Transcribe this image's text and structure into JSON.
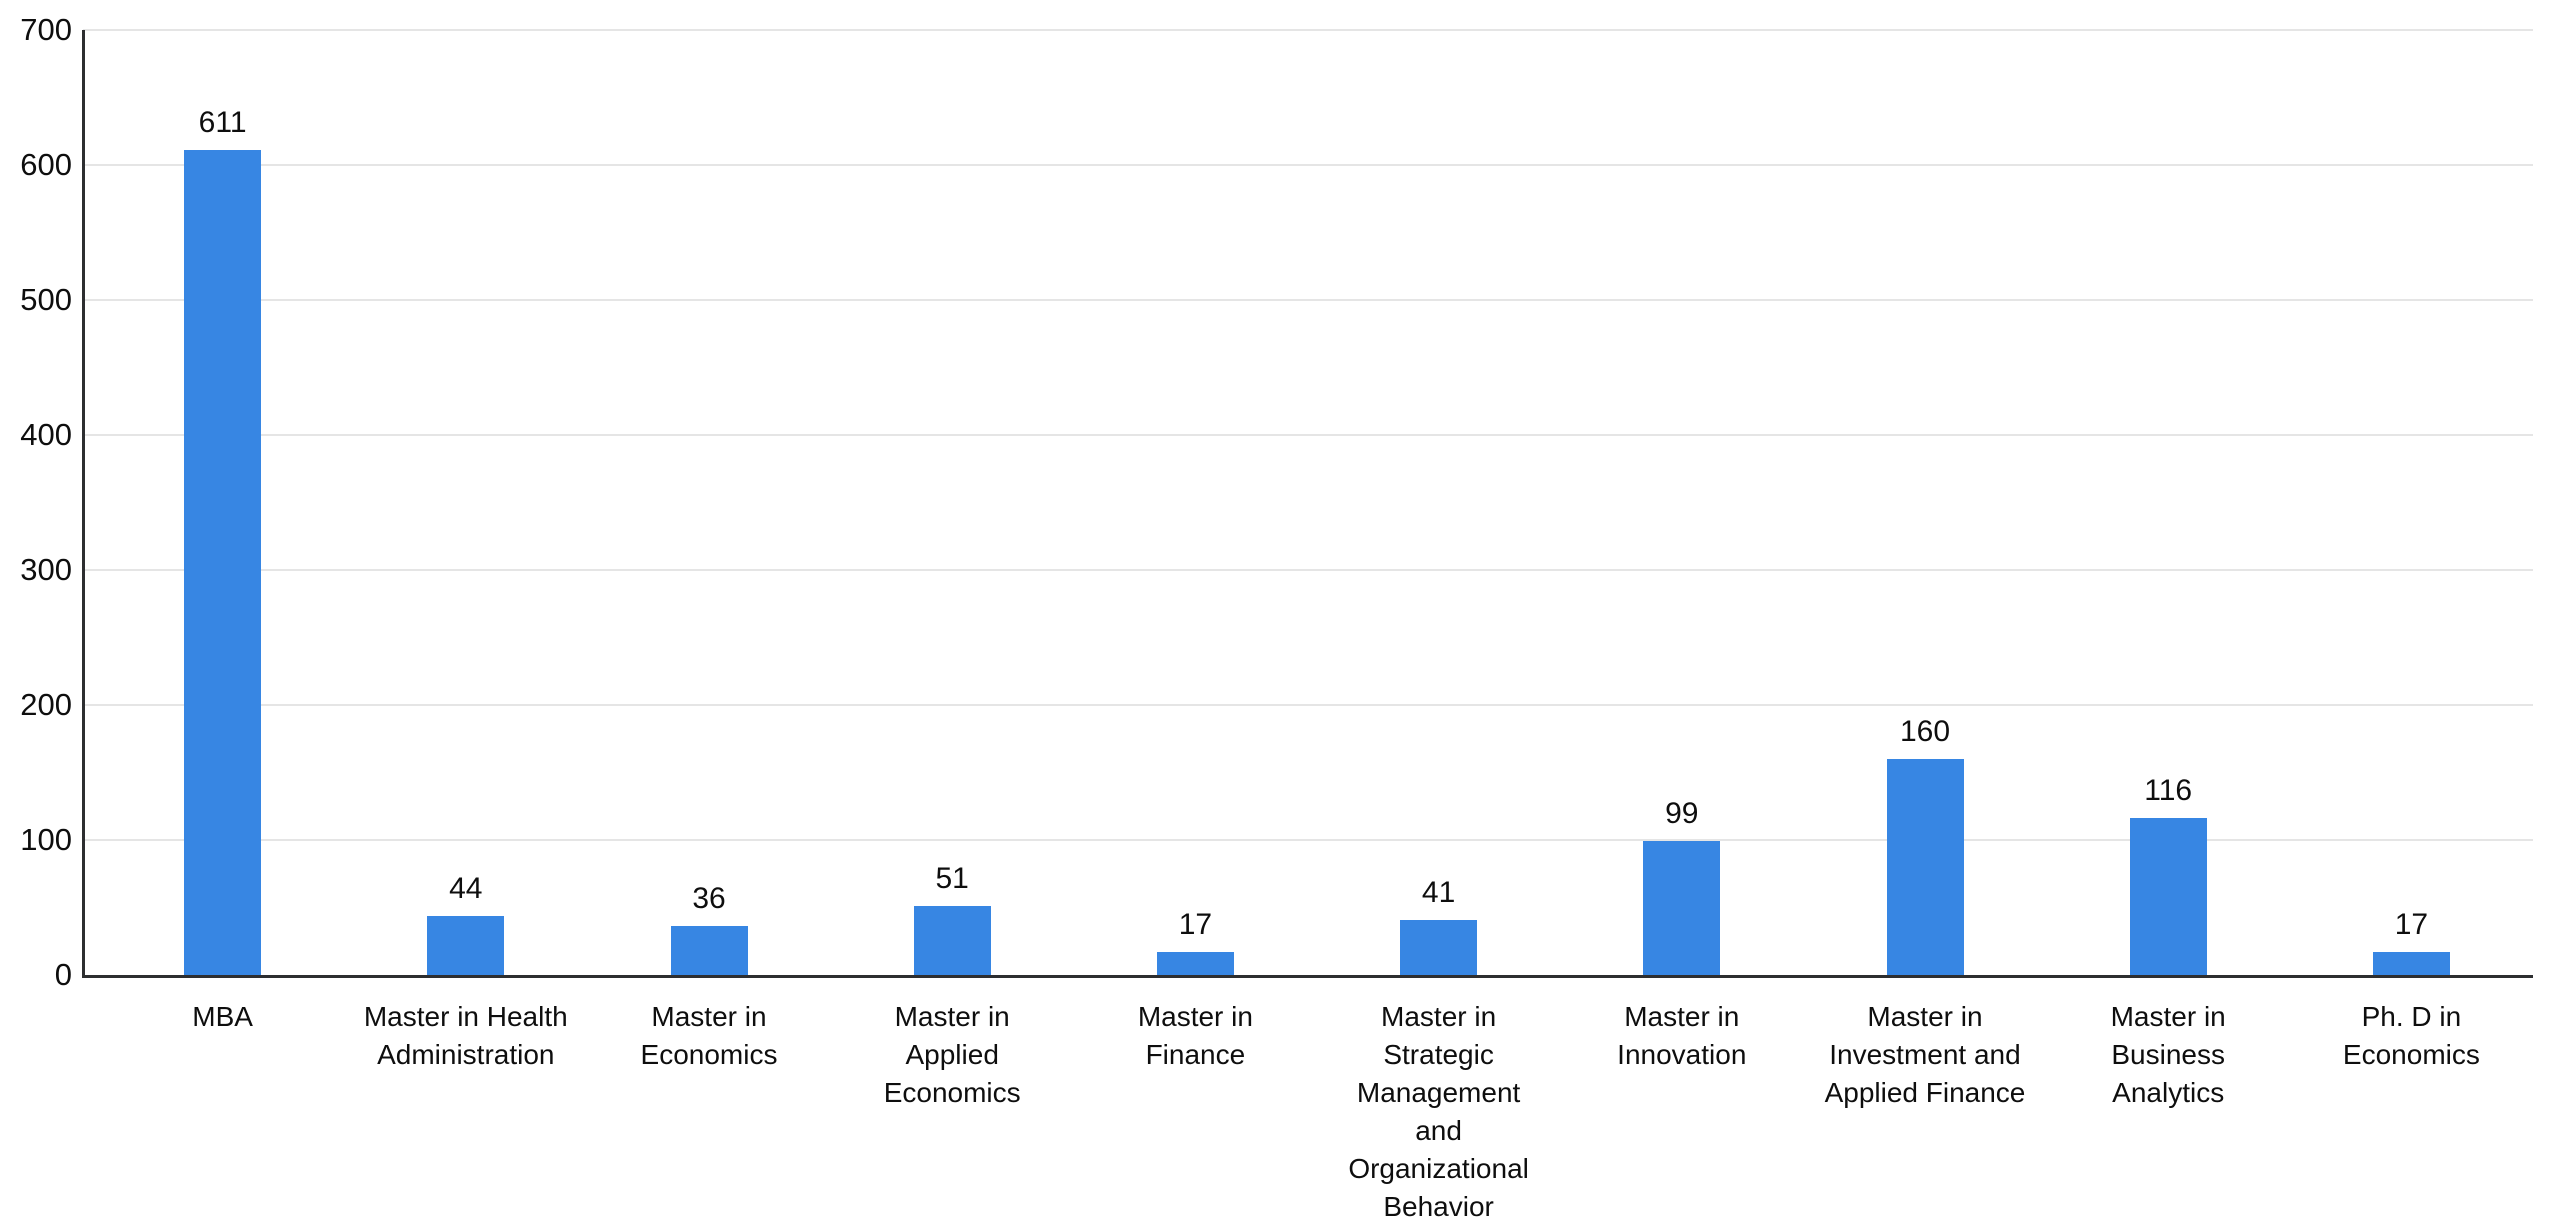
{
  "chart_data": {
    "type": "bar",
    "title": "",
    "xlabel": "",
    "ylabel": "",
    "categories": [
      "MBA",
      "Master in Health Administration",
      "Master in Economics",
      "Master in Applied Economics",
      "Master in Finance",
      "Master in Strategic Management and Organizational Behavior",
      "Master in Innovation",
      "Master in Investment and Applied Finance",
      "Master in Business Analytics",
      "Ph. D in Economics"
    ],
    "category_display_lines": [
      [
        "MBA"
      ],
      [
        "Master in Health",
        "Administration"
      ],
      [
        "Master in",
        "Economics"
      ],
      [
        "Master in",
        "Applied",
        "Economics"
      ],
      [
        "Master in",
        "Finance"
      ],
      [
        "Master in",
        "Strategic",
        "Management",
        "and",
        "Organizational",
        "Behavior"
      ],
      [
        "Master in",
        "Innovation"
      ],
      [
        "Master in",
        "Investment and",
        "Applied Finance"
      ],
      [
        "Master in",
        "Business",
        "Analytics"
      ],
      [
        "Ph. D in",
        "Economics"
      ]
    ],
    "values": [
      611,
      44,
      36,
      51,
      17,
      41,
      99,
      160,
      116,
      17
    ],
    "value_labels": [
      "611",
      "44",
      "36",
      "51",
      "17",
      "41",
      "99",
      "160",
      "116",
      "17"
    ],
    "ylim": [
      0,
      700
    ],
    "yticks": [
      0,
      100,
      200,
      300,
      400,
      500,
      600,
      700
    ],
    "grid": true,
    "legend": "none",
    "colors": {
      "bar": "#3786E3",
      "axis_line": "#2D2E30",
      "gridline": "#E5E5E5",
      "text": "#0E0E0E",
      "background": "#FFFFFF"
    }
  }
}
